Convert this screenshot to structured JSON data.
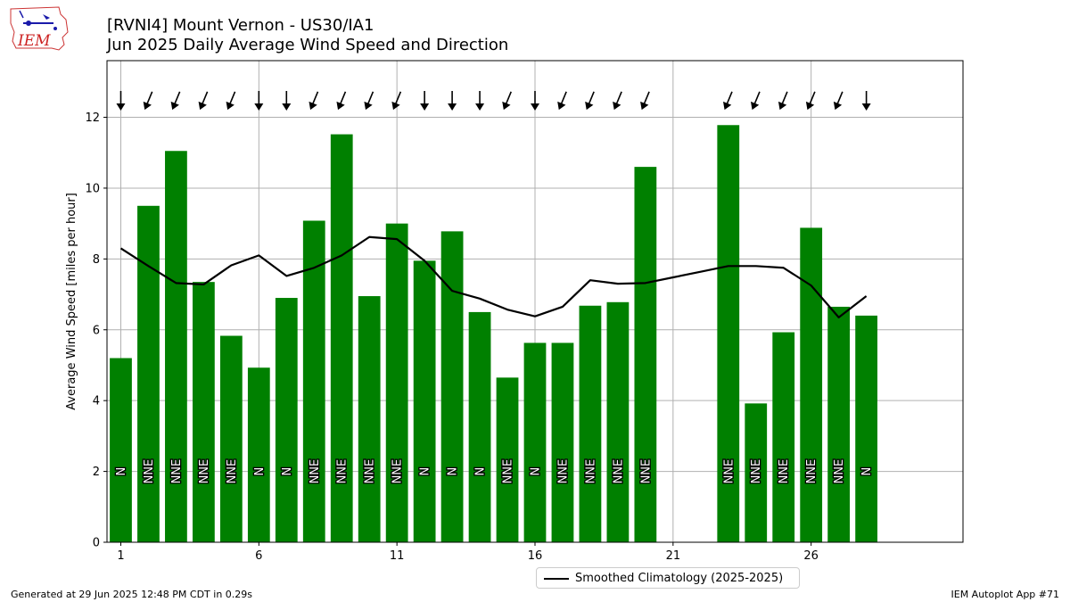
{
  "header": {
    "title_line1": "[RVNI4] Mount Vernon - US30/IA1",
    "title_line2": "Jun 2025 Daily Average Wind Speed and Direction",
    "logo_text": "IEM"
  },
  "footer": {
    "generated": "Generated at 29 Jun 2025 12:48 PM CDT in 0.29s",
    "app": "IEM Autoplot App #71"
  },
  "legend": {
    "label": "Smoothed Climatology (2025-2025)"
  },
  "colors": {
    "bar": "#008000",
    "climatology_line": "#000000",
    "grid": "#b0b0b0",
    "arrow": "#000000"
  },
  "chart_data": {
    "type": "bar",
    "title": "",
    "xlabel": "",
    "ylabel": "Average Wind Speed [miles per hour]",
    "xlim": [
      0.5,
      31.5
    ],
    "ylim": [
      0,
      13.6
    ],
    "x_ticks": [
      1,
      6,
      11,
      16,
      21,
      26
    ],
    "y_ticks": [
      0,
      2,
      4,
      6,
      8,
      10,
      12
    ],
    "grid": true,
    "legend_position": "below-center",
    "days": [
      1,
      2,
      3,
      4,
      5,
      6,
      7,
      8,
      9,
      10,
      11,
      12,
      13,
      14,
      15,
      16,
      17,
      18,
      19,
      20,
      23,
      24,
      25,
      26,
      27,
      28
    ],
    "speeds": [
      5.2,
      9.5,
      11.05,
      7.35,
      5.83,
      4.93,
      6.9,
      9.08,
      11.52,
      6.95,
      9.0,
      7.95,
      8.78,
      6.5,
      4.65,
      5.63,
      5.63,
      6.68,
      6.78,
      10.6,
      11.78,
      3.92,
      5.93,
      8.88,
      6.65,
      6.4
    ],
    "directions": [
      "N",
      "NNE",
      "NNE",
      "NNE",
      "NNE",
      "N",
      "N",
      "NNE",
      "NNE",
      "NNE",
      "NNE",
      "N",
      "N",
      "N",
      "NNE",
      "N",
      "NNE",
      "NNE",
      "NNE",
      "NNE",
      "NNE",
      "NNE",
      "NNE",
      "NNE",
      "NNE",
      "N"
    ],
    "climatology": {
      "name": "Smoothed Climatology (2025-2025)",
      "x": [
        1,
        2,
        3,
        4,
        5,
        6,
        7,
        8,
        9,
        10,
        11,
        12,
        13,
        14,
        15,
        16,
        17,
        18,
        19,
        20,
        21,
        22,
        23,
        24,
        25,
        26,
        27,
        28
      ],
      "y": [
        8.3,
        7.8,
        7.32,
        7.28,
        7.82,
        8.1,
        7.52,
        7.75,
        8.1,
        8.62,
        8.56,
        7.95,
        7.1,
        6.88,
        6.57,
        6.38,
        6.65,
        7.4,
        7.3,
        7.32,
        7.48,
        7.64,
        7.8,
        7.8,
        7.75,
        7.25,
        6.35,
        6.95
      ]
    }
  }
}
